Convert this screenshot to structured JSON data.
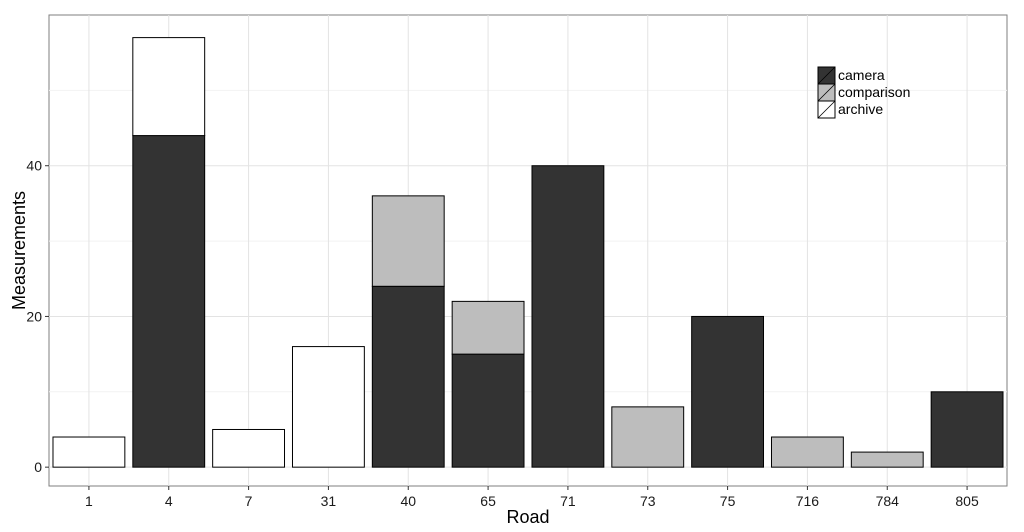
{
  "chart_data": {
    "type": "bar",
    "stacked": true,
    "categories": [
      "1",
      "4",
      "7",
      "31",
      "40",
      "65",
      "71",
      "73",
      "75",
      "716",
      "784",
      "805"
    ],
    "series": [
      {
        "name": "camera",
        "color": "#333333",
        "values": [
          0,
          44,
          0,
          0,
          24,
          15,
          40,
          0,
          20,
          0,
          0,
          10
        ]
      },
      {
        "name": "comparison",
        "color": "#bdbdbd",
        "values": [
          0,
          0,
          0,
          0,
          12,
          7,
          0,
          8,
          0,
          4,
          2,
          0
        ]
      },
      {
        "name": "archive",
        "color": "#ffffff",
        "values": [
          4,
          13,
          5,
          16,
          0,
          0,
          0,
          0,
          0,
          0,
          0,
          0
        ]
      }
    ],
    "xlabel": "Road",
    "ylabel": "Measurements",
    "ylim": [
      -2.5,
      60
    ],
    "yticks": [
      0,
      20,
      40
    ],
    "grid": true,
    "legend_position": "top-right",
    "legend": [
      {
        "name": "camera",
        "color": "#333333"
      },
      {
        "name": "comparison",
        "color": "#bdbdbd"
      },
      {
        "name": "archive",
        "color": "#ffffff"
      }
    ]
  }
}
